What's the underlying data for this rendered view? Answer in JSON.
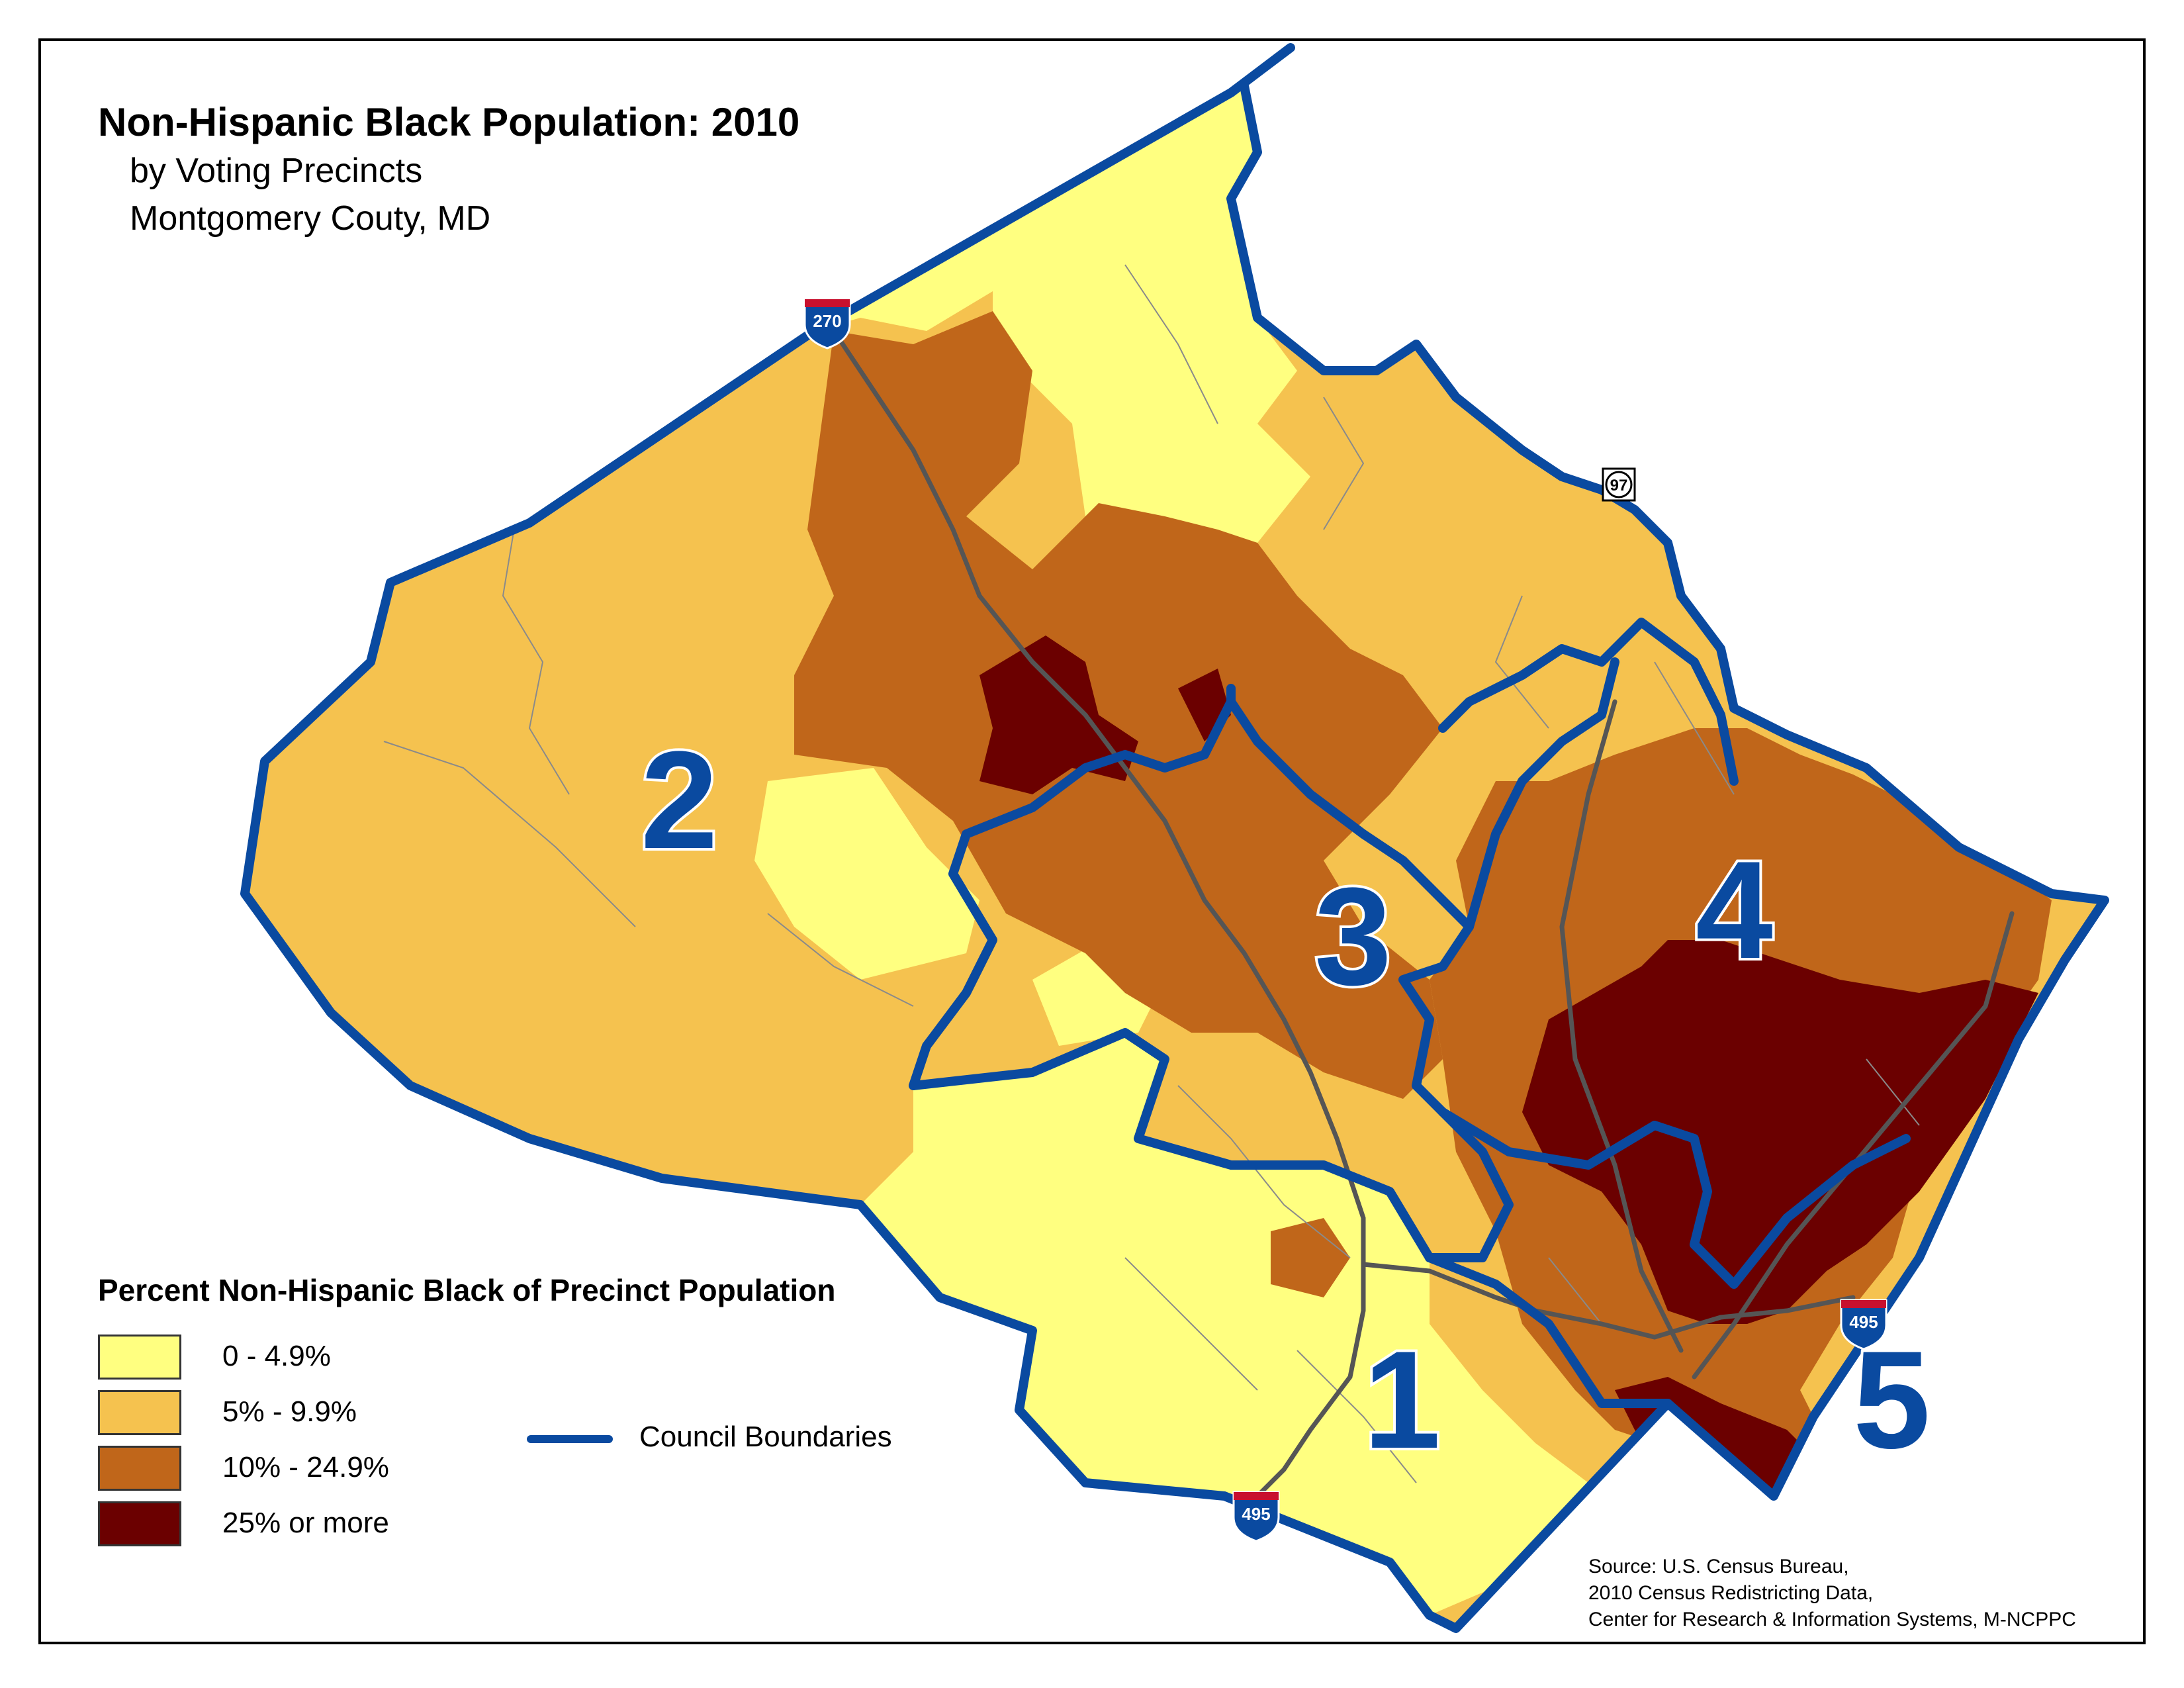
{
  "map": {
    "title": "Non-Hispanic Black Population: 2010",
    "subtitle_lines": [
      "by Voting Precincts",
      "Montgomery Couty, MD"
    ],
    "districts": [
      "1",
      "2",
      "3",
      "4",
      "5"
    ],
    "highways": [
      {
        "name": "interstate-270-shield",
        "number": "270"
      },
      {
        "name": "route-97-shield",
        "number": "97"
      },
      {
        "name": "interstate-495-shield-east",
        "number": "495"
      },
      {
        "name": "interstate-495-shield-south",
        "number": "495"
      }
    ],
    "legend": {
      "title": "Percent Non-Hispanic Black of Precinct Population",
      "classes": [
        {
          "label": "0 - 4.9%",
          "color": "#ffff80"
        },
        {
          "label": "5% - 9.9%",
          "color": "#f5c24f"
        },
        {
          "label": "10% - 24.9%",
          "color": "#c0661a"
        },
        {
          "label": "25% or more",
          "color": "#6b0000"
        }
      ],
      "boundary_label": "Council Boundaries",
      "boundary_color": "#0a4aa0"
    },
    "source_lines": [
      "Source: U.S. Census Bureau,",
      "2010 Census Redistricting Data,",
      "Center for Research & Information Systems, M-NCPPC"
    ]
  }
}
